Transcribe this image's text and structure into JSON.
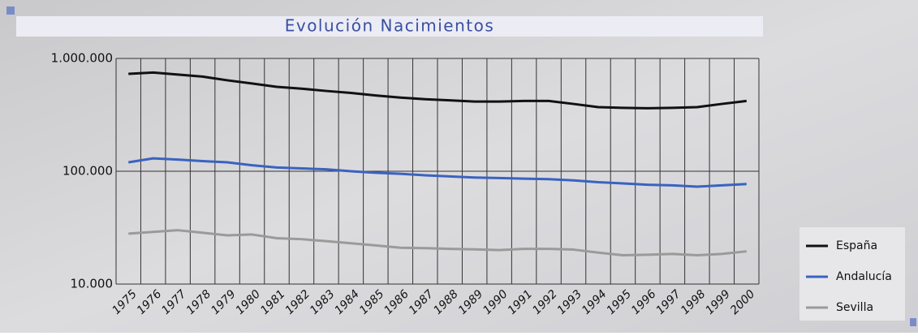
{
  "chart_data": {
    "type": "line",
    "title": "Evolución Nacimientos",
    "log_scale": true,
    "grid": true,
    "legend": "lower right",
    "categories": [
      "1975",
      "1976",
      "1977",
      "1978",
      "1979",
      "1980",
      "1981",
      "1982",
      "1983",
      "1984",
      "1985",
      "1986",
      "1987",
      "1988",
      "1989",
      "1990",
      "1991",
      "1992",
      "1993",
      "1994",
      "1995",
      "1996",
      "1997",
      "1998",
      "1999",
      "2000"
    ],
    "ylim": [
      10000,
      1000000
    ],
    "yticks": [
      {
        "value": 10000,
        "label": "10.000"
      },
      {
        "value": 100000,
        "label": "100.000"
      },
      {
        "value": 1000000,
        "label": "1.000.000"
      }
    ],
    "series": [
      {
        "name": "España",
        "color": "#111111",
        "values": [
          730000,
          750000,
          720000,
          690000,
          640000,
          600000,
          560000,
          540000,
          515000,
          495000,
          470000,
          450000,
          435000,
          425000,
          415000,
          415000,
          420000,
          420000,
          395000,
          370000,
          365000,
          362000,
          365000,
          370000,
          395000,
          420000
        ]
      },
      {
        "name": "Andalucía",
        "color": "#3a62c0",
        "values": [
          120000,
          130000,
          127000,
          123000,
          120000,
          113000,
          108000,
          106000,
          104000,
          100000,
          97000,
          95000,
          92000,
          90000,
          88000,
          87000,
          86000,
          85000,
          83000,
          80000,
          78000,
          76000,
          75000,
          73000,
          75000,
          77000
        ]
      },
      {
        "name": "Sevilla",
        "color": "#9a9a9a",
        "values": [
          28000,
          29000,
          30000,
          28500,
          27000,
          27500,
          25500,
          25000,
          24000,
          23000,
          22000,
          21000,
          20800,
          20500,
          20300,
          20000,
          20500,
          20500,
          20200,
          19000,
          18000,
          18200,
          18500,
          18000,
          18500,
          19500
        ]
      }
    ]
  }
}
